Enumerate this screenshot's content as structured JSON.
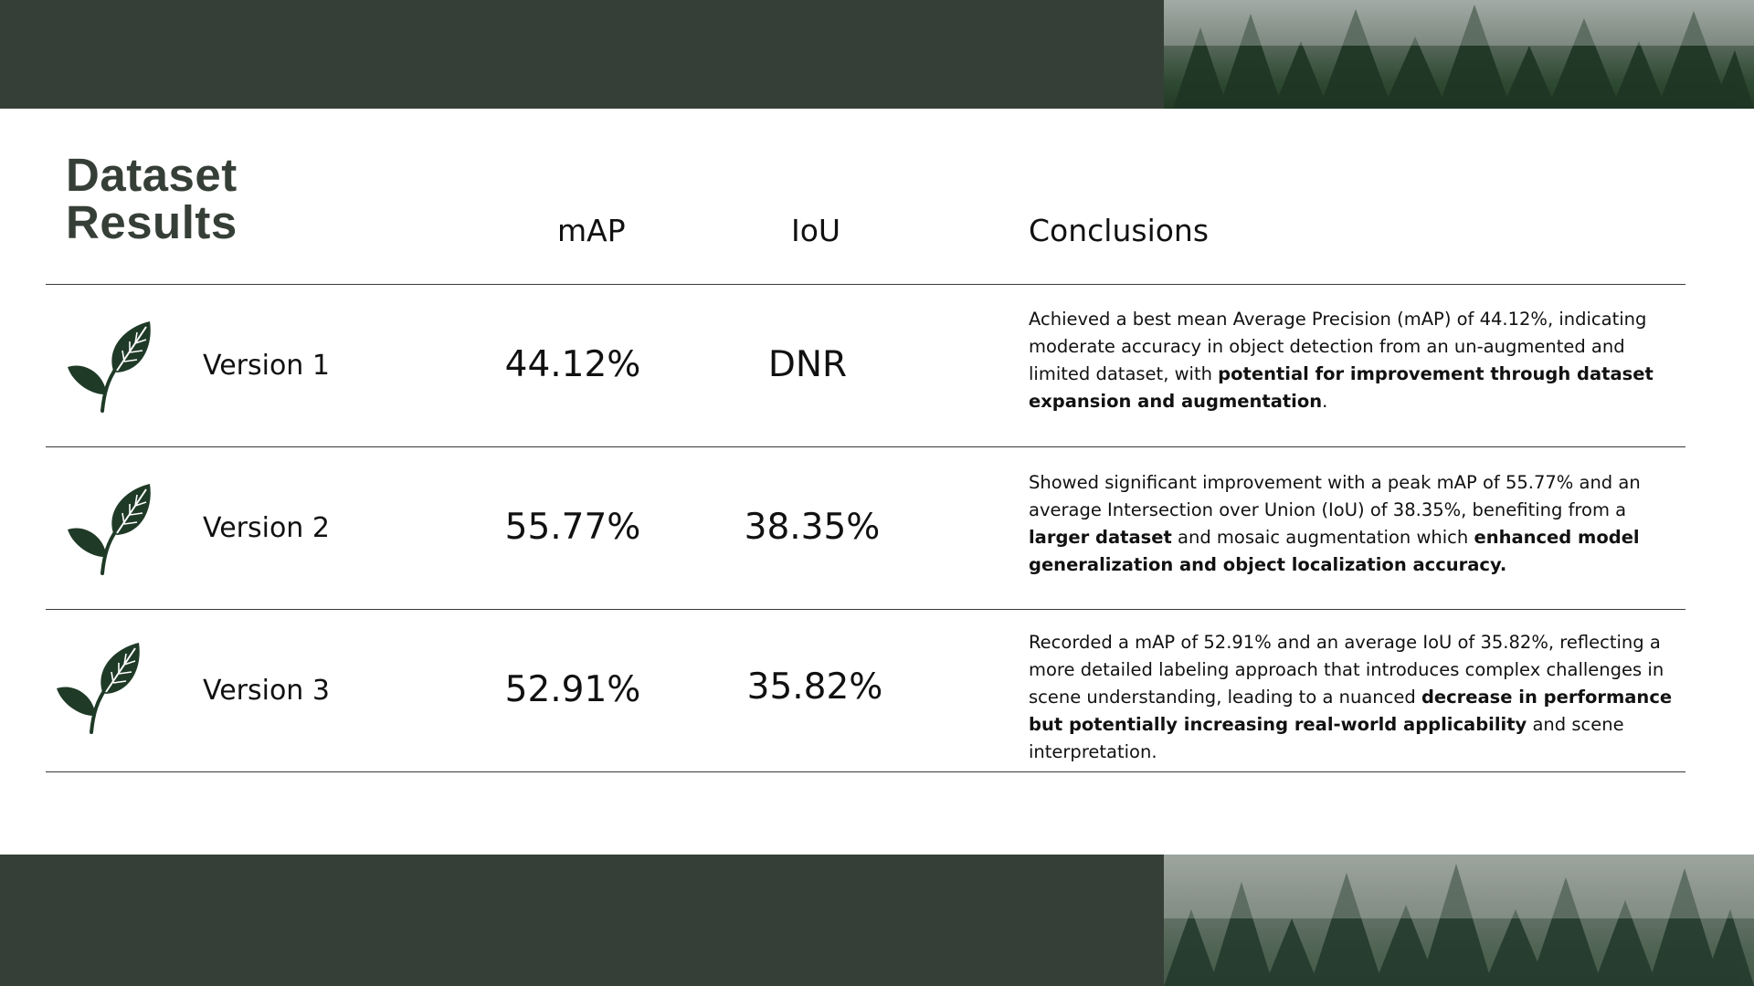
{
  "title": {
    "line1": "Dataset",
    "line2": "Results"
  },
  "columns": {
    "map": "mAP",
    "iou": "IoU",
    "conclusions": "Conclusions"
  },
  "rows": [
    {
      "version": "Version 1",
      "map": "44.12%",
      "iou": "DNR",
      "conclusion": {
        "p1": "Achieved a best mean Average Precision (mAP) of 44.12%, indicating moderate accuracy in object detection from an un-augmented and limited dataset, with ",
        "b1": "potential for improvement through dataset expansion and augmentation",
        "p2": "."
      }
    },
    {
      "version": "Version 2",
      "map": "55.77%",
      "iou": "38.35%",
      "conclusion": {
        "p1": "Showed significant improvement with a peak mAP of 55.77% and an average Intersection over Union (IoU) of 38.35%, benefiting from a ",
        "b1": "larger dataset",
        "p2": " and mosaic augmentation which ",
        "b2": "enhanced model generalization and object localization accuracy."
      }
    },
    {
      "version": "Version 3",
      "map": "52.91%",
      "iou": "35.82%",
      "conclusion": {
        "p1": "Recorded a mAP of 52.91% and an average IoU of 35.82%, reflecting a more detailed labeling approach that introduces complex challenges in scene understanding, leading to a nuanced ",
        "b1": "decrease in performance but potentially increasing real-world applicability",
        "p2": " and scene interpretation."
      }
    }
  ],
  "icons": {
    "row_icon": "leaf-sprout-icon",
    "banner_image": "misty-forest-image"
  },
  "colors": {
    "band": "#363f37",
    "title": "#363f37",
    "leaf": "#1f3a27",
    "text": "#111111"
  }
}
